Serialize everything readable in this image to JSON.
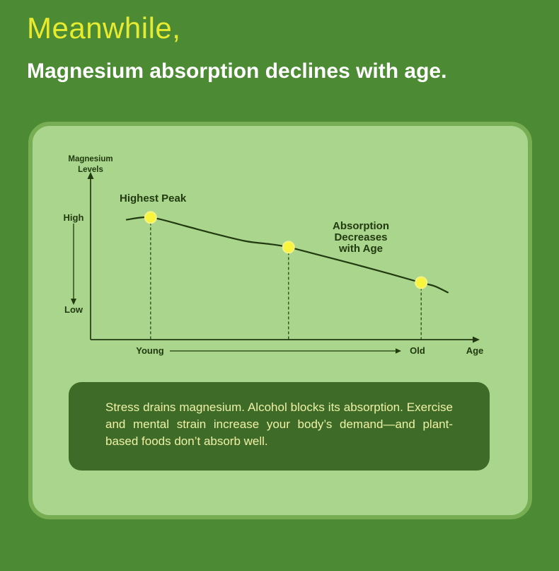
{
  "header": {
    "line1": "Meanwhile,",
    "line2": "Magnesium absorption declines with age."
  },
  "colors": {
    "background": "#4c8b34",
    "card_bg": "#aad58c",
    "card_border": "#77ad53",
    "title_yellow": "#e6eb2f",
    "subtitle_white": "#ffffff",
    "ink": "#213a10",
    "dot_yellow": "#f9f43c",
    "dot_edge": "#f4f284",
    "infobox_bg": "#3e6b27",
    "infobox_text": "#eef1a6"
  },
  "chart_data": {
    "type": "line",
    "title": "Magnesium absorption declines with age",
    "ylabel": "Magnesium\nLevels",
    "xlabel": "Age",
    "y_axis_labels": {
      "top": "High",
      "bottom": "Low"
    },
    "x_axis_labels": {
      "start": "Young",
      "end": "Old"
    },
    "annotations": {
      "peak": "Highest Peak",
      "trend": "Absorption\nDecreases\nwith Age"
    },
    "x_range": [
      "Young",
      "Old"
    ],
    "y_range": [
      "Low",
      "High"
    ],
    "grid": false,
    "curve_points": [
      [
        0.095,
        0.75
      ],
      [
        0.158,
        0.764
      ],
      [
        0.25,
        0.71
      ],
      [
        0.33,
        0.66
      ],
      [
        0.41,
        0.615
      ],
      [
        0.47,
        0.598
      ],
      [
        0.521,
        0.578
      ],
      [
        0.6,
        0.53
      ],
      [
        0.7,
        0.468
      ],
      [
        0.79,
        0.41
      ],
      [
        0.87,
        0.356
      ],
      [
        0.905,
        0.335
      ],
      [
        0.94,
        0.295
      ]
    ],
    "markers": [
      {
        "x": 0.158,
        "y": 0.764,
        "label": "Highest Peak"
      },
      {
        "x": 0.521,
        "y": 0.578
      },
      {
        "x": 0.87,
        "y": 0.356
      }
    ]
  },
  "info_box": {
    "text": "Stress drains magnesium. Alcohol blocks its absorption. Exercise and mental strain increase your body’s demand—and plant-based foods don’t absorb well."
  }
}
